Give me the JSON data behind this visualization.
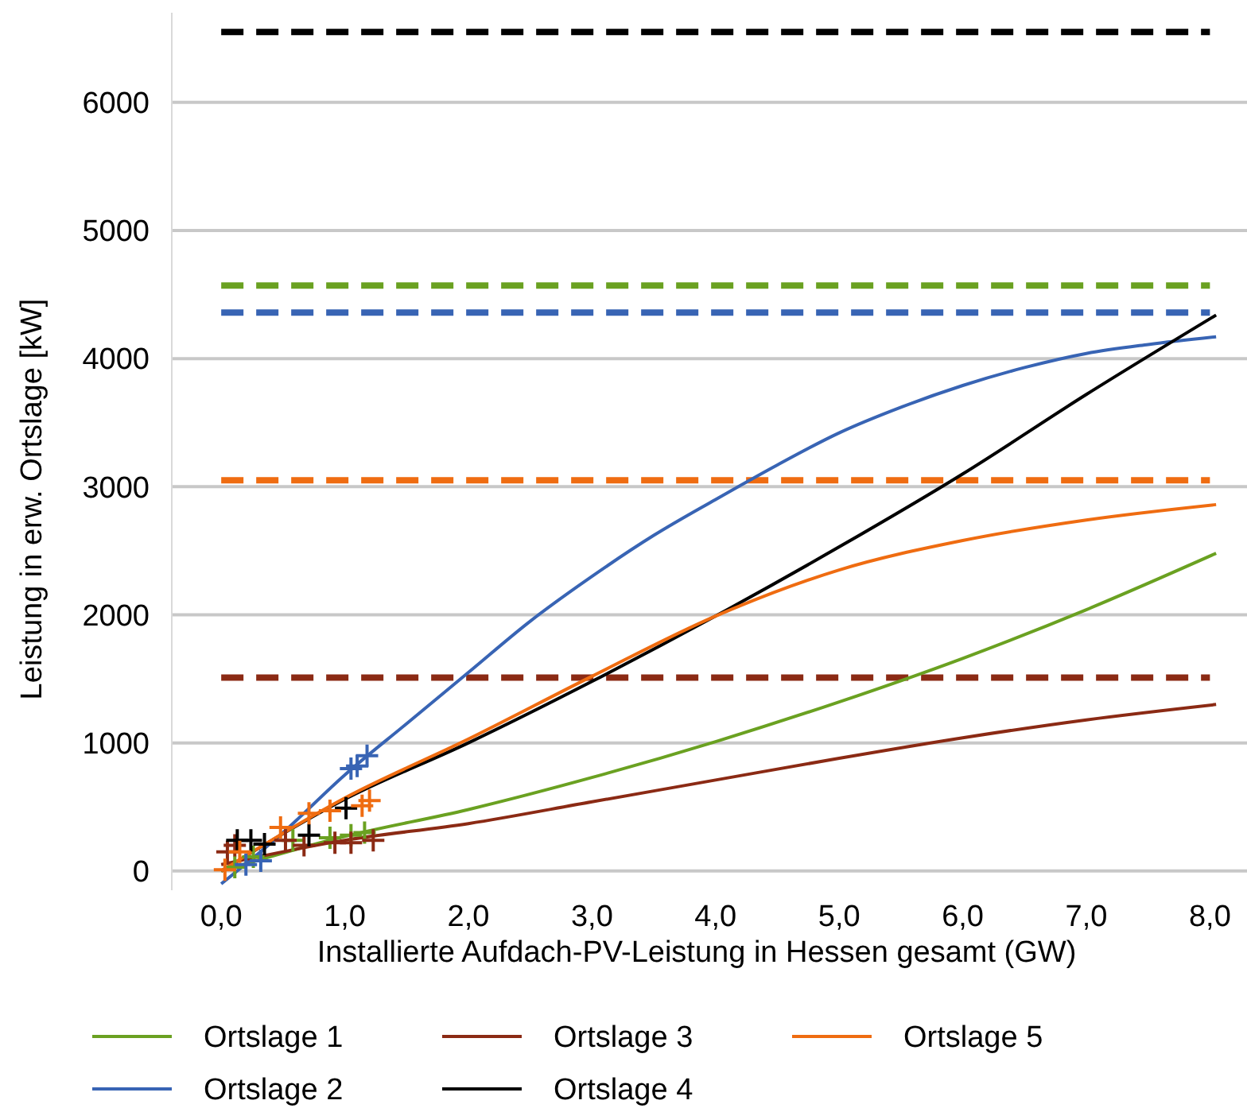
{
  "chart_data": {
    "type": "line",
    "xlabel": "Installierte Aufdach-PV-Leistung in Hessen gesamt (GW)",
    "ylabel": "Leistung in erw. Ortslage [kW]",
    "xlim": [
      -0.4,
      8.3
    ],
    "xticks": [
      {
        "value": 0,
        "label": "0,0"
      },
      {
        "value": 1,
        "label": "1,0"
      },
      {
        "value": 2,
        "label": "2,0"
      },
      {
        "value": 3,
        "label": "3,0"
      },
      {
        "value": 4,
        "label": "4,0"
      },
      {
        "value": 5,
        "label": "5,0"
      },
      {
        "value": 6,
        "label": "6,0"
      },
      {
        "value": 7,
        "label": "7,0"
      },
      {
        "value": 8,
        "label": "8,0"
      }
    ],
    "ylim": [
      -150,
      6700
    ],
    "yticks": [
      0,
      1000,
      2000,
      3000,
      4000,
      5000,
      6000
    ],
    "grid": "y",
    "legend": "bottom",
    "marker": "none",
    "line_style": "solid",
    "series": [
      {
        "name": "Ortslage 1",
        "color": "#6aa121",
        "x": [
          0,
          1,
          2,
          3,
          4,
          5,
          6,
          7,
          8.05
        ],
        "values": [
          0,
          270,
          480,
          730,
          1010,
          1320,
          1660,
          2040,
          2480
        ]
      },
      {
        "name": "Ortslage 2",
        "color": "#3864b4",
        "x": [
          0,
          0.5,
          1,
          1.5,
          2,
          2.5,
          3,
          3.5,
          4,
          4.5,
          5,
          5.5,
          6,
          6.5,
          7,
          7.5,
          8.05
        ],
        "values": [
          -100,
          300,
          750,
          1150,
          1550,
          1950,
          2300,
          2620,
          2900,
          3170,
          3420,
          3620,
          3790,
          3930,
          4040,
          4110,
          4170
        ]
      },
      {
        "name": "Ortslage 3",
        "color": "#8b2a14",
        "x": [
          0,
          1,
          2,
          3,
          4,
          5,
          6,
          7,
          8.05
        ],
        "values": [
          50,
          240,
          370,
          540,
          710,
          880,
          1040,
          1180,
          1300
        ]
      },
      {
        "name": "Ortslage 4",
        "color": "#000000",
        "x": [
          0,
          1,
          2,
          3,
          4,
          5,
          6,
          7,
          8.05
        ],
        "values": [
          0,
          560,
          1000,
          1480,
          1990,
          2530,
          3100,
          3720,
          4340
        ]
      },
      {
        "name": "Ortslage 5",
        "color": "#ef6c11",
        "x": [
          0,
          1,
          2,
          3,
          4,
          5,
          6,
          7,
          8.05
        ],
        "values": [
          0,
          570,
          1030,
          1520,
          1990,
          2350,
          2580,
          2740,
          2860
        ]
      },
      {
        "type": "scatter",
        "marker": "cross",
        "color": "#6aa121",
        "x": [
          0.11,
          0.26,
          0.58,
          0.88,
          1.05,
          1.16
        ],
        "values": [
          30,
          110,
          240,
          260,
          280,
          300
        ]
      },
      {
        "type": "scatter",
        "marker": "cross",
        "color": "#3864b4",
        "x": [
          0.2,
          0.32,
          1.05,
          1.1,
          1.18
        ],
        "values": [
          50,
          80,
          800,
          820,
          900
        ]
      },
      {
        "type": "scatter",
        "marker": "cross",
        "color": "#8b2a14",
        "x": [
          0.05,
          0.11,
          0.52,
          0.67,
          0.92,
          1.05,
          1.23
        ],
        "values": [
          150,
          200,
          240,
          200,
          220,
          220,
          240
        ]
      },
      {
        "type": "scatter",
        "marker": "cross",
        "color": "#000000",
        "x": [
          0.13,
          0.24,
          0.35,
          0.71,
          1.01
        ],
        "values": [
          240,
          240,
          210,
          280,
          490
        ]
      },
      {
        "type": "scatter",
        "marker": "cross",
        "color": "#ef6c11",
        "x": [
          0.03,
          0.15,
          0.48,
          0.71,
          0.88,
          1.14,
          1.2
        ],
        "values": [
          10,
          150,
          340,
          450,
          470,
          510,
          550
        ]
      }
    ],
    "ref_lines": [
      {
        "axis": "y",
        "value": 6550,
        "color": "#000000",
        "line_style": "dashed"
      },
      {
        "axis": "y",
        "value": 4570,
        "color": "#6aa121",
        "line_style": "dashed"
      },
      {
        "axis": "y",
        "value": 4360,
        "color": "#3864b4",
        "line_style": "dashed"
      },
      {
        "axis": "y",
        "value": 3050,
        "color": "#ef6c11",
        "line_style": "dashed"
      },
      {
        "axis": "y",
        "value": 1510,
        "color": "#8b2a14",
        "line_style": "dashed"
      }
    ]
  }
}
